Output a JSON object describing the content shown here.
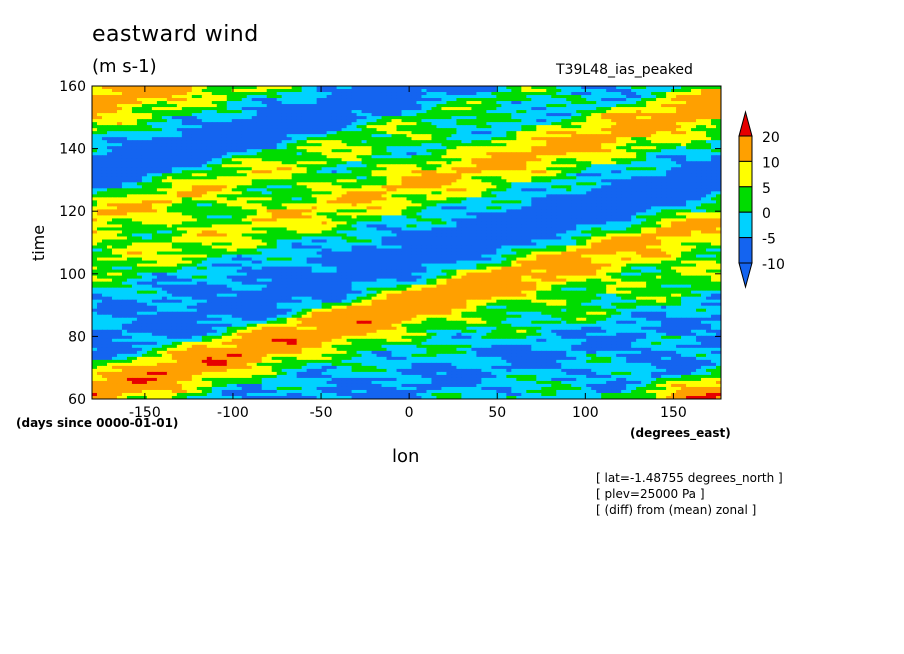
{
  "header": {
    "title": "eastward wind",
    "units": "(m s-1)",
    "run_name": "T39L48_ias_peaked"
  },
  "footer": {
    "x_units": "(degrees_east)",
    "y_units": "(days since 0000-01-01)",
    "info_lines": [
      "[ lat=-1.48755 degrees_north ]",
      "[ plev=25000 Pa ]",
      "[ (diff) from (mean) zonal ]"
    ]
  },
  "chart_data": {
    "type": "heatmap",
    "title": "eastward wind",
    "subtitle": "(m s-1)",
    "xlabel": "lon",
    "ylabel": "time",
    "xlim": [
      -180,
      177
    ],
    "ylim": [
      60,
      160
    ],
    "x_ticks": [
      -150,
      -100,
      -50,
      0,
      50,
      100,
      150
    ],
    "x_tick_labels": [
      "-150",
      "-100",
      "-50",
      "0",
      "50",
      "100",
      "150"
    ],
    "y_ticks": [
      60,
      80,
      100,
      120,
      140,
      160
    ],
    "y_tick_labels": [
      "60",
      "80",
      "100",
      "120",
      "140",
      "160"
    ],
    "colorbar": {
      "levels": [
        -10,
        -5,
        0,
        5,
        10,
        20
      ],
      "labels": [
        "-10",
        "-5",
        "0",
        "5",
        "10",
        "20"
      ],
      "colors": [
        "#1464f0",
        "#00d2ff",
        "#00dc00",
        "#ffff00",
        "#ffa000",
        "#e60000"
      ],
      "extend": "both"
    },
    "pattern": "eastward-propagating alternating bands of positive and negative anomalies, sloping upward to the right"
  }
}
